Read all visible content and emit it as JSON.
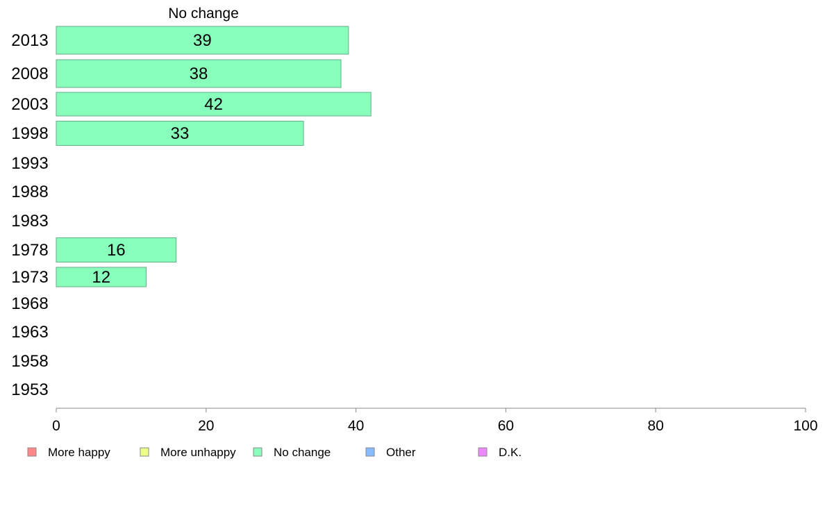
{
  "chart_data": {
    "type": "bar",
    "orientation": "horizontal",
    "title": "No change",
    "categories": [
      "2013",
      "2008",
      "2003",
      "1998",
      "1993",
      "1988",
      "1983",
      "1978",
      "1973",
      "1968",
      "1963",
      "1958",
      "1953"
    ],
    "series": [
      {
        "name": "No change",
        "color": "#88ffbb",
        "values": [
          39,
          38,
          42,
          33,
          null,
          null,
          null,
          16,
          12,
          null,
          null,
          null,
          null
        ]
      }
    ],
    "xlim": [
      0,
      100
    ],
    "xticks": [
      0,
      20,
      40,
      60,
      80,
      100
    ],
    "grid": false,
    "legend": {
      "placement": "bottom",
      "items": [
        {
          "label": "More happy",
          "color": "#ff8888"
        },
        {
          "label": "More unhappy",
          "color": "#eeff88"
        },
        {
          "label": "No change",
          "color": "#88ffbb"
        },
        {
          "label": "Other",
          "color": "#88bbff"
        },
        {
          "label": "D.K.",
          "color": "#ee88ff"
        }
      ]
    }
  }
}
